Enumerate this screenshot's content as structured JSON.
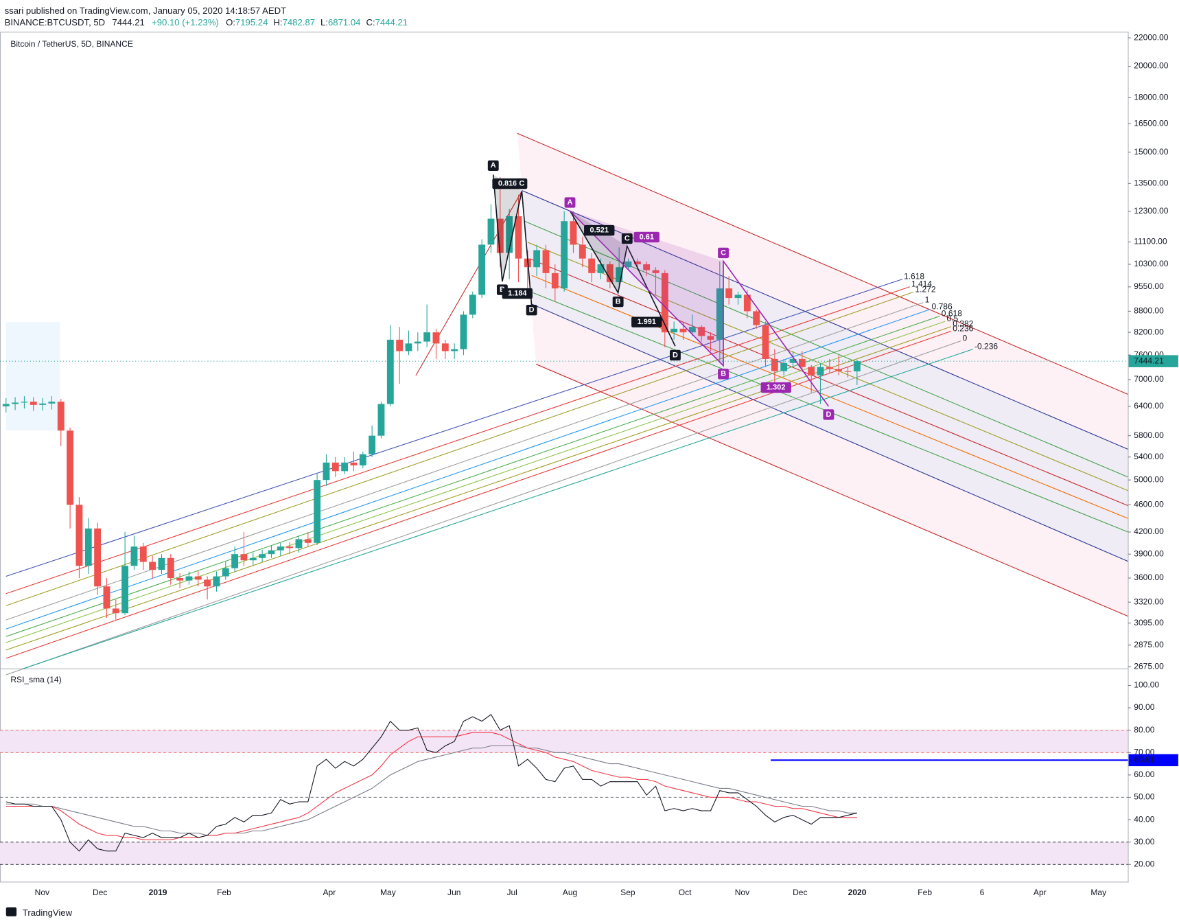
{
  "header": {
    "author_line": "ssari published on TradingView.com, January 05, 2020 14:18:57 AEDT",
    "symbol": "BINANCE:BTCUSDT, 5D",
    "change": "+90.10 (+1.23%)",
    "ohlc_labels": [
      "O:",
      "H:",
      "L:",
      "C:"
    ],
    "brand": "TradingView"
  },
  "chart_data": [
    {
      "type": "candlestick",
      "title": "Bitcoin / TetherUS, 5D, BINANCE",
      "up_color": "#26a69a",
      "down_color": "#ef5350",
      "log_scale": true,
      "grid": false,
      "ylim": [
        2662,
        22450
      ],
      "yticks": [
        {
          "value": 22000,
          "label": "22000.00"
        },
        {
          "value": 20000,
          "label": "20000.00"
        },
        {
          "value": 18000,
          "label": "18000.00"
        },
        {
          "value": 16500,
          "label": "16500.00"
        },
        {
          "value": 15000,
          "label": "15000.00"
        },
        {
          "value": 13500,
          "label": "13500.00"
        },
        {
          "value": 12300,
          "label": "12300.00"
        },
        {
          "value": 11100,
          "label": "11100.00"
        },
        {
          "value": 10300,
          "label": "10300.00"
        },
        {
          "value": 9550,
          "label": "9550.00"
        },
        {
          "value": 8800,
          "label": "8800.00"
        },
        {
          "value": 8200,
          "label": "8200.00"
        },
        {
          "value": 7600,
          "label": "7600.00"
        },
        {
          "value": 7000,
          "label": "7000.00"
        },
        {
          "value": 6400,
          "label": "6400.00"
        },
        {
          "value": 5800,
          "label": "5800.00"
        },
        {
          "value": 5400,
          "label": "5400.00"
        },
        {
          "value": 5000,
          "label": "5000.00"
        },
        {
          "value": 4600,
          "label": "4600.00"
        },
        {
          "value": 4200,
          "label": "4200.00"
        },
        {
          "value": 3900,
          "label": "3900.00"
        },
        {
          "value": 3600,
          "label": "3600.00"
        },
        {
          "value": 3320,
          "label": "3320.00"
        },
        {
          "value": 3095,
          "label": "3095.00"
        },
        {
          "value": 2875,
          "label": "2875.00"
        },
        {
          "value": 2675,
          "label": "2675.00"
        }
      ],
      "xtick_labels": [
        "Nov",
        "Dec",
        "2019",
        "Feb",
        "Apr",
        "May",
        "Jun",
        "Jul",
        "Aug",
        "Sep",
        "Oct",
        "Nov",
        "Dec",
        "2020",
        "Feb",
        "6",
        "Apr",
        "May"
      ],
      "open": [
        6400,
        6450,
        6480,
        6500,
        6430,
        6460,
        6500,
        5900,
        4600,
        3750,
        4250,
        3500,
        3250,
        3200,
        3750,
        4000,
        3800,
        3700,
        3850,
        3600,
        3570,
        3620,
        3580,
        3500,
        3620,
        3720,
        3900,
        3820,
        3850,
        3900,
        3950,
        4000,
        3980,
        4100,
        4050,
        5000,
        5300,
        5150,
        5300,
        5250,
        5450,
        5800,
        6450,
        8000,
        7700,
        7900,
        7950,
        8200,
        7900,
        7700,
        7750,
        8700,
        9300,
        11000,
        12000,
        10700,
        12100,
        10500,
        10200,
        10800,
        10000,
        9500,
        11900,
        11000,
        10500,
        10000,
        10300,
        9700,
        10200,
        10400,
        10300,
        10100,
        10000,
        8200,
        8300,
        8200,
        8350,
        8100,
        8000,
        9500,
        9200,
        9300,
        8800,
        8400,
        7500,
        7200,
        7400,
        7500,
        7300,
        7100,
        7300,
        7250,
        7200,
        7195.24
      ],
      "high": [
        6580,
        6600,
        6620,
        6600,
        6580,
        6620,
        6560,
        5960,
        4720,
        4400,
        4330,
        3600,
        3350,
        4200,
        4150,
        4050,
        3880,
        3900,
        3900,
        3660,
        3680,
        3690,
        3620,
        3680,
        3800,
        4000,
        4200,
        3920,
        3960,
        4020,
        4050,
        4060,
        4150,
        4200,
        5100,
        5450,
        5400,
        5400,
        5500,
        5500,
        6000,
        6500,
        8400,
        8350,
        8250,
        8200,
        9000,
        8300,
        8000,
        7900,
        8800,
        9400,
        11200,
        12600,
        13800,
        12400,
        13000,
        10800,
        11000,
        11000,
        10300,
        12300,
        12300,
        11300,
        10700,
        10500,
        10400,
        10900,
        10500,
        10500,
        10400,
        10200,
        10100,
        8500,
        8500,
        8700,
        8400,
        8200,
        10400,
        9900,
        9400,
        9450,
        8850,
        8500,
        7750,
        7500,
        7700,
        7700,
        7350,
        7400,
        7500,
        7600,
        7300,
        7482.87
      ],
      "low": [
        6270,
        6320,
        6350,
        6300,
        6310,
        6330,
        5600,
        4250,
        3600,
        3650,
        3400,
        3150,
        3130,
        3180,
        3700,
        3700,
        3590,
        3650,
        3520,
        3480,
        3520,
        3500,
        3350,
        3440,
        3580,
        3680,
        3750,
        3760,
        3800,
        3850,
        3880,
        3900,
        3920,
        4000,
        4020,
        4900,
        5050,
        5100,
        5150,
        5200,
        5400,
        5750,
        6400,
        6900,
        7600,
        7700,
        7800,
        7500,
        7500,
        7500,
        7600,
        8600,
        9200,
        10700,
        10200,
        9800,
        9700,
        9500,
        9900,
        9500,
        9100,
        9400,
        10700,
        10200,
        9700,
        9800,
        9500,
        9600,
        10100,
        10100,
        9900,
        9300,
        7800,
        8000,
        8000,
        8100,
        7950,
        7700,
        7400,
        9000,
        9000,
        8600,
        8300,
        7300,
        6900,
        7100,
        7300,
        7200,
        6700,
        6450,
        7150,
        7100,
        7050,
        6871.04
      ],
      "close": [
        6450,
        6480,
        6500,
        6430,
        6460,
        6500,
        5900,
        4600,
        3750,
        4250,
        3500,
        3250,
        3200,
        3750,
        4000,
        3800,
        3700,
        3850,
        3600,
        3570,
        3620,
        3580,
        3500,
        3620,
        3720,
        3900,
        3820,
        3850,
        3900,
        3950,
        4000,
        3980,
        4100,
        4050,
        5000,
        5300,
        5150,
        5300,
        5250,
        5450,
        5800,
        6450,
        8000,
        7700,
        7900,
        7950,
        8200,
        7900,
        7700,
        7750,
        8700,
        9300,
        11000,
        12000,
        10700,
        12100,
        10500,
        10200,
        10800,
        10000,
        9500,
        11900,
        11000,
        10500,
        10000,
        10300,
        9700,
        10200,
        10400,
        10300,
        10100,
        10000,
        8200,
        8300,
        8200,
        8350,
        8100,
        8000,
        9500,
        9200,
        9300,
        8800,
        8400,
        7500,
        7200,
        7400,
        7500,
        7300,
        7100,
        7300,
        7250,
        7200,
        7195.24,
        7444.21
      ],
      "annotations": [
        "A",
        "0.816",
        "C",
        "B",
        "1.184",
        "D",
        "0.521",
        "C",
        "B",
        "1.991",
        "D",
        "A",
        "0.61",
        "C",
        "B",
        "1.302",
        "D"
      ],
      "fib_levels": [
        1.618,
        1.414,
        1.272,
        1,
        0.786,
        0.618,
        0.5,
        0.382,
        0.236,
        0,
        -0.236
      ]
    },
    {
      "type": "line",
      "title": "RSI_sma (14)",
      "ylim": [
        12.3,
        106.4
      ],
      "yticks": [
        {
          "value": 100,
          "label": "100.00"
        },
        {
          "value": 90,
          "label": "90.00"
        },
        {
          "value": 80,
          "label": "80.00"
        },
        {
          "value": 70,
          "label": "70.00"
        },
        {
          "value": 60,
          "label": "60.00"
        },
        {
          "value": 50,
          "label": "50.00"
        },
        {
          "value": 40,
          "label": "40.00"
        },
        {
          "value": 30,
          "label": "30.00"
        },
        {
          "value": 20,
          "label": "20.00"
        }
      ],
      "bands": [
        [
          70,
          80
        ],
        [
          20,
          30
        ]
      ],
      "midline": 50,
      "hline": {
        "value": 66.61,
        "color": "#0000ff"
      },
      "series": [
        {
          "color": "#131722",
          "values": [
            48,
            47,
            47,
            46,
            46,
            46,
            40,
            30,
            26,
            31,
            27,
            26,
            26,
            34,
            33,
            32,
            34,
            32,
            32,
            32,
            34,
            32,
            33,
            37,
            38,
            41,
            39,
            42,
            42,
            43,
            49,
            47,
            48,
            48,
            64,
            67,
            63,
            66,
            64,
            67,
            72,
            77,
            84,
            80,
            80,
            81,
            71,
            70,
            73,
            75,
            84,
            86,
            84,
            87,
            80,
            82,
            64,
            67,
            63,
            58,
            57,
            63,
            64,
            58,
            58,
            55,
            57,
            57,
            57,
            57,
            51,
            55,
            44,
            45,
            44,
            45,
            44,
            44,
            53,
            52,
            52,
            49,
            46,
            42,
            39,
            41,
            42,
            40,
            38,
            41,
            41,
            41,
            42,
            43
          ]
        },
        {
          "color": "#f23645",
          "values": [
            46,
            46,
            46,
            46,
            46,
            46,
            44,
            41,
            38,
            36,
            34,
            33,
            33,
            32,
            32,
            31,
            31,
            31,
            31,
            32,
            32,
            32,
            33,
            33,
            34,
            34,
            35,
            36,
            37,
            38,
            39,
            40,
            41,
            43,
            46,
            49,
            52,
            54,
            56,
            58,
            60,
            64,
            69,
            72,
            75,
            77,
            77,
            77,
            77,
            77,
            78,
            79,
            79,
            79,
            78,
            76,
            74,
            72,
            71,
            70,
            68,
            67,
            66,
            64,
            62,
            61,
            60,
            59,
            59,
            58,
            58,
            57,
            55,
            54,
            53,
            52,
            51,
            50,
            50,
            50,
            49,
            48,
            48,
            47,
            46,
            46,
            45,
            45,
            44,
            43,
            42,
            41,
            41,
            41
          ]
        },
        {
          "color": "#787b86",
          "values": [
            47,
            47,
            47,
            47,
            46,
            46,
            45,
            44,
            43,
            42,
            41,
            40,
            39,
            38,
            37,
            37,
            36,
            35,
            35,
            34,
            34,
            34,
            33,
            33,
            34,
            34,
            34,
            35,
            35,
            36,
            37,
            38,
            39,
            40,
            42,
            44,
            46,
            48,
            50,
            52,
            54,
            57,
            60,
            62,
            64,
            66,
            67,
            68,
            69,
            70,
            71,
            72,
            72,
            73,
            73,
            73,
            73,
            72,
            72,
            71,
            70,
            70,
            69,
            68,
            67,
            66,
            65,
            65,
            64,
            63,
            62,
            61,
            60,
            59,
            58,
            57,
            56,
            55,
            54,
            54,
            53,
            52,
            51,
            50,
            49,
            48,
            47,
            46,
            46,
            45,
            44,
            44,
            43,
            43
          ]
        }
      ]
    }
  ]
}
